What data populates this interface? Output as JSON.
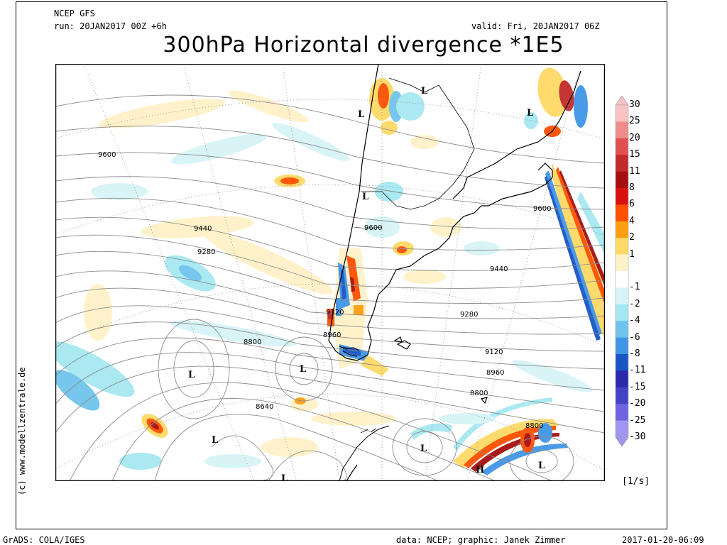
{
  "header": {
    "model": "NCEP GFS",
    "run": "run: 20JAN2017 00Z +6h",
    "valid": "valid: Fri, 20JAN2017 06Z",
    "title": "300hPa Horizontal divergence *1E5"
  },
  "credit": "(c) www.modellzentrale.de",
  "colorbar": {
    "unit": "[1/s]",
    "labels": [
      "30",
      "25",
      "20",
      "15",
      "11",
      "8",
      "6",
      "4",
      "2",
      "1",
      "-1",
      "-2",
      "-4",
      "-6",
      "-8",
      "-11",
      "-15",
      "-20",
      "-25",
      "-30"
    ],
    "colors": [
      "#f9c3c3",
      "#f08c8c",
      "#e05050",
      "#c22b2b",
      "#a50f0f",
      "#d81010",
      "#ff5000",
      "#ff9e10",
      "#ffd966",
      "#fff2c8",
      "#ffffff",
      "#d6f4f7",
      "#a6e8f1",
      "#6fc3ec",
      "#4096e6",
      "#1a55c6",
      "#2a2aaa",
      "#4343c6",
      "#6e64e0",
      "#a096f2"
    ]
  },
  "map": {
    "contour_labels": [
      "9600",
      "9440",
      "9280",
      "9600",
      "9120",
      "8960",
      "8800",
      "8640",
      "9440",
      "9280",
      "9120",
      "8960",
      "8800",
      "9600",
      "8800"
    ],
    "lows": [
      "L",
      "L",
      "L",
      "L",
      "L",
      "L",
      "L",
      "L",
      "L",
      "L"
    ],
    "highs": [
      "H"
    ]
  },
  "footer": {
    "left": "GrADS: COLA/IGES",
    "center": "data: NCEP; graphic: Janek Zimmer",
    "right": "2017-01-20-06:09"
  }
}
